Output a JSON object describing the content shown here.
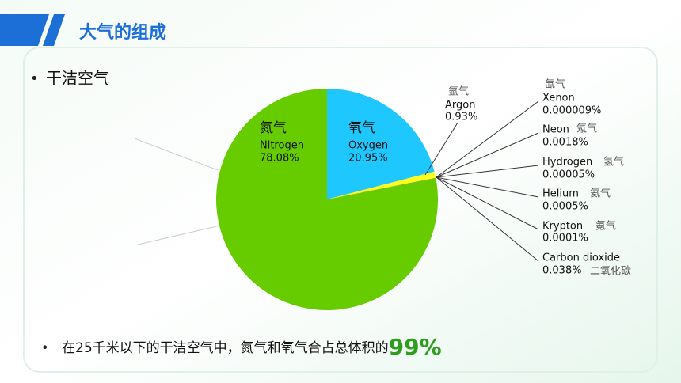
{
  "header": {
    "title": "大气的组成"
  },
  "bullets": [
    "干洁空气"
  ],
  "footer": {
    "text": "在25千米以下的干洁空气中，氮气和氧气合占总体积的",
    "highlight": "99%"
  },
  "chart_data": {
    "type": "pie",
    "categories": [
      "Oxygen",
      "Argon",
      "Carbon dioxide",
      "Krypton",
      "Helium",
      "Hydrogen",
      "Neon",
      "Xenon",
      "Nitrogen"
    ],
    "names_zh": [
      "氧气",
      "氩气",
      "二氧化碳",
      "氪气",
      "氦气",
      "氢气",
      "氖气",
      "氙气",
      "氮气"
    ],
    "values": [
      20.95,
      0.93,
      0.038,
      0.0001,
      0.0005,
      5e-05,
      0.0018,
      9e-06,
      78.08
    ],
    "value_labels": [
      "20.95%",
      "0.93%",
      "0.038%",
      "0.0001%",
      "0.0005%",
      "0.00005%",
      "0.0018%",
      "0.000009%",
      "78.08%"
    ],
    "colors": [
      "#1ec8ff",
      "#ffff1a",
      "#444444",
      "#666666",
      "#777777",
      "#888888",
      "#999999",
      "#aaaaaa",
      "#66cc00"
    ]
  }
}
